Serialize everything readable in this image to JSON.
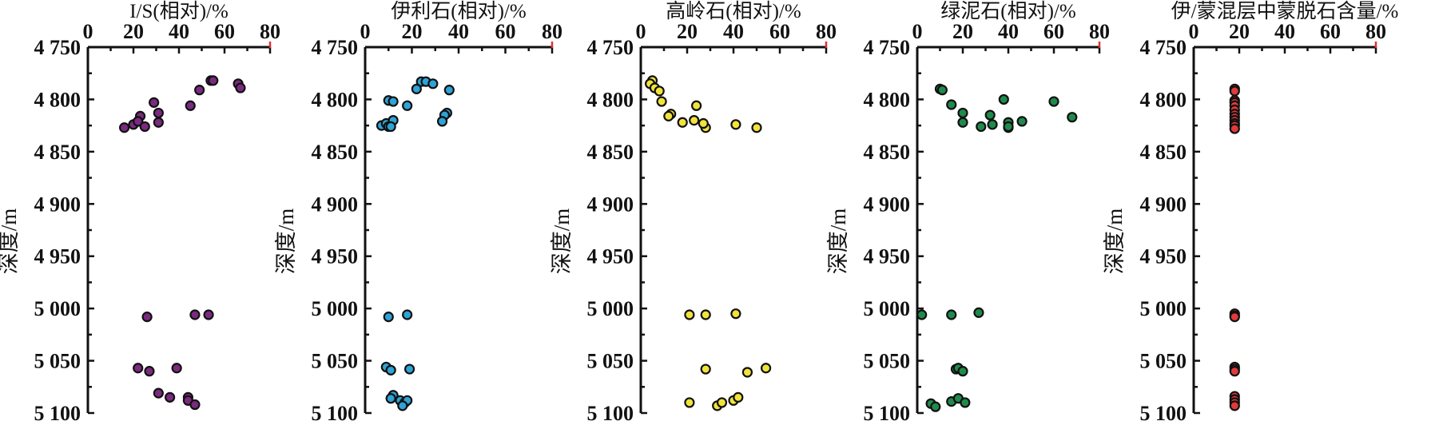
{
  "colors": {
    "axis": "#111111",
    "marker_edge": "#111111",
    "edge_mark": "#e03030"
  },
  "chart_data": [
    {
      "type": "scatter",
      "title": "I/S(相对)/%",
      "ylabel": "深度/m",
      "xlim": [
        0,
        80
      ],
      "xticks": [
        0,
        20,
        40,
        60,
        80
      ],
      "ylim": [
        4750,
        5100
      ],
      "yticks": [
        4750,
        4800,
        4850,
        4900,
        4950,
        5000,
        5050,
        5100
      ],
      "ytick_labels": [
        "4 750",
        "4 800",
        "4 850",
        "4 900",
        "4 950",
        "5 000",
        "5 050",
        "5 100"
      ],
      "grid": false,
      "color": "#7b2a80",
      "series": [
        {
          "x": [
            54,
            55,
            66,
            67,
            49,
            45,
            29,
            31,
            23,
            31,
            16,
            20,
            22,
            25,
            26,
            47,
            53,
            22,
            27,
            39,
            31,
            36,
            44,
            44,
            47
          ],
          "y": [
            4782,
            4782,
            4785,
            4789,
            4791,
            4806,
            4803,
            4813,
            4816,
            4822,
            4827,
            4824,
            4821,
            4826,
            5008,
            5006,
            5006,
            5057,
            5060,
            5057,
            5081,
            5085,
            5085,
            5088,
            5092
          ]
        }
      ]
    },
    {
      "type": "scatter",
      "title": "伊利石(相对)/%",
      "ylabel": "深度/m",
      "xlim": [
        0,
        80
      ],
      "xticks": [
        0,
        20,
        40,
        60,
        80
      ],
      "ylim": [
        4750,
        5100
      ],
      "yticks": [
        4750,
        4800,
        4850,
        4900,
        4950,
        5000,
        5050,
        5100
      ],
      "ytick_labels": [
        "4 750",
        "4 800",
        "4 850",
        "4 900",
        "4 950",
        "5 000",
        "5 050",
        "5 100"
      ],
      "grid": false,
      "color": "#2ea3d6",
      "series": [
        {
          "x": [
            24,
            26,
            29,
            22,
            36,
            10,
            12,
            18,
            35,
            34,
            33,
            7,
            9,
            12,
            10,
            11,
            10,
            18,
            9,
            11,
            19,
            12,
            11,
            15,
            17,
            18,
            16
          ],
          "y": [
            4783,
            4783,
            4785,
            4790,
            4791,
            4801,
            4802,
            4806,
            4813,
            4815,
            4821,
            4825,
            4823,
            4820,
            4826,
            4826,
            5008,
            5006,
            5056,
            5059,
            5058,
            5083,
            5086,
            5088,
            5090,
            5088,
            5093
          ]
        }
      ]
    },
    {
      "type": "scatter",
      "title": "高岭石(相对)/%",
      "ylabel": "深度/m",
      "xlim": [
        0,
        80
      ],
      "xticks": [
        0,
        20,
        40,
        60,
        80
      ],
      "ylim": [
        4750,
        5100
      ],
      "yticks": [
        4750,
        4800,
        4850,
        4900,
        4950,
        5000,
        5050,
        5100
      ],
      "ytick_labels": [
        "4 750",
        "4 800",
        "4 850",
        "4 900",
        "4 950",
        "5 000",
        "5 050",
        "5 100"
      ],
      "grid": false,
      "color": "#f2e33a",
      "series": [
        {
          "x": [
            5,
            4,
            6,
            8,
            9,
            24,
            13,
            12,
            18,
            23,
            28,
            27,
            41,
            50,
            21,
            28,
            41,
            28,
            54,
            46,
            21,
            33,
            35,
            40,
            42
          ],
          "y": [
            4782,
            4785,
            4789,
            4792,
            4802,
            4806,
            4814,
            4816,
            4822,
            4820,
            4827,
            4823,
            4824,
            4827,
            5006,
            5006,
            5005,
            5058,
            5057,
            5061,
            5090,
            5093,
            5090,
            5088,
            5085
          ]
        }
      ]
    },
    {
      "type": "scatter",
      "title": "绿泥石(相对)/%",
      "ylabel": "深度/m",
      "xlim": [
        0,
        80
      ],
      "xticks": [
        0,
        20,
        40,
        60,
        80
      ],
      "ylim": [
        4750,
        5100
      ],
      "yticks": [
        4750,
        4800,
        4850,
        4900,
        4950,
        5000,
        5050,
        5100
      ],
      "ytick_labels": [
        "4 750",
        "4 800",
        "4 850",
        "4 900",
        "4 950",
        "5 000",
        "5 050",
        "5 100"
      ],
      "grid": false,
      "color": "#1f8a4c",
      "series": [
        {
          "x": [
            10,
            11,
            15,
            38,
            60,
            20,
            32,
            33,
            40,
            46,
            20,
            28,
            40,
            68,
            40,
            2,
            15,
            27,
            17,
            18,
            20,
            6,
            8,
            15,
            18,
            21
          ],
          "y": [
            4790,
            4791,
            4805,
            4800,
            4802,
            4813,
            4815,
            4824,
            4822,
            4821,
            4822,
            4826,
            4827,
            4817,
            4826,
            5006,
            5006,
            5004,
            5058,
            5057,
            5060,
            5091,
            5094,
            5089,
            5086,
            5090
          ]
        }
      ]
    },
    {
      "type": "scatter",
      "title": "伊/蒙混层中蒙脱石含量/%",
      "ylabel": "深度/m",
      "xlim": [
        0,
        80
      ],
      "xticks": [
        0,
        20,
        40,
        60,
        80
      ],
      "ylim": [
        4750,
        5100
      ],
      "yticks": [
        4750,
        4800,
        4850,
        4900,
        4950,
        5000,
        5050,
        5100
      ],
      "ytick_labels": [
        "4 750",
        "4 800",
        "4 850",
        "4 900",
        "4 950",
        "5 000",
        "5 050",
        "5 100"
      ],
      "grid": false,
      "color": "#e23a3a",
      "series": [
        {
          "x": [
            18,
            18,
            18,
            18,
            18,
            18,
            18,
            18,
            18,
            18,
            18,
            18,
            18,
            18,
            18,
            18,
            18,
            18,
            18,
            18,
            18,
            18
          ],
          "y": [
            4790,
            4792,
            4801,
            4803,
            4806,
            4810,
            4814,
            4817,
            4820,
            4823,
            4825,
            4828,
            5005,
            5007,
            5008,
            5056,
            5058,
            5060,
            5084,
            5087,
            5090,
            5093
          ]
        }
      ]
    }
  ]
}
